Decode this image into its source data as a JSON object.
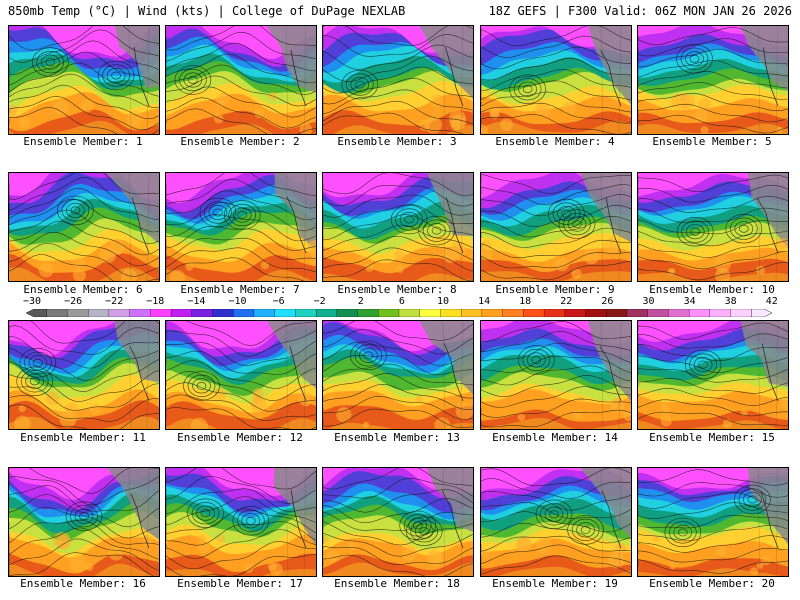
{
  "header": {
    "left": "850mb Temp (°C) | Wind (kts) | College of DuPage NEXLAB",
    "right": "18Z GEFS | F300 Valid: 06Z MON JAN 26 2026"
  },
  "colorbar": {
    "ticks": [
      "−30",
      "−26",
      "−22",
      "−18",
      "−14",
      "−10",
      "−6",
      "−2",
      "2",
      "6",
      "10",
      "14",
      "18",
      "22",
      "26",
      "30",
      "34",
      "38",
      "42"
    ],
    "colors": [
      "#5a5a5a",
      "#7a7a7a",
      "#9a9a9a",
      "#b4b4c8",
      "#cfa0e6",
      "#d070ff",
      "#ff40ff",
      "#c020f0",
      "#7a20e0",
      "#3030d0",
      "#2070f0",
      "#20b0ff",
      "#20e0ff",
      "#20d0c0",
      "#10b090",
      "#109050",
      "#30a030",
      "#70c020",
      "#c0e040",
      "#ffff40",
      "#ffe020",
      "#ffc020",
      "#ffa020",
      "#ff8020",
      "#ff5018",
      "#e83018",
      "#c81818",
      "#a01010",
      "#881818",
      "#a03060",
      "#c050a0",
      "#e070d0",
      "#ff90ff",
      "#ffb0ff",
      "#ffd0ff",
      "#f8e8ff"
    ]
  },
  "members": [
    {
      "label": "Ensemble Member: 1"
    },
    {
      "label": "Ensemble Member: 2"
    },
    {
      "label": "Ensemble Member: 3"
    },
    {
      "label": "Ensemble Member: 4"
    },
    {
      "label": "Ensemble Member: 5"
    },
    {
      "label": "Ensemble Member: 6"
    },
    {
      "label": "Ensemble Member: 7"
    },
    {
      "label": "Ensemble Member: 8"
    },
    {
      "label": "Ensemble Member: 9"
    },
    {
      "label": "Ensemble Member: 10"
    },
    {
      "label": "Ensemble Member: 11"
    },
    {
      "label": "Ensemble Member: 12"
    },
    {
      "label": "Ensemble Member: 13"
    },
    {
      "label": "Ensemble Member: 14"
    },
    {
      "label": "Ensemble Member: 15"
    },
    {
      "label": "Ensemble Member: 16"
    },
    {
      "label": "Ensemble Member: 17"
    },
    {
      "label": "Ensemble Member: 18"
    },
    {
      "label": "Ensemble Member: 19"
    },
    {
      "label": "Ensemble Member: 20"
    }
  ]
}
